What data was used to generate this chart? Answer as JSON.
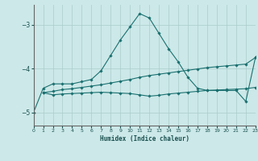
{
  "xlabel": "Humidex (Indice chaleur)",
  "background_color": "#cce8e8",
  "grid_color": "#aacccc",
  "line_color": "#1a7070",
  "xlim": [
    0,
    23
  ],
  "ylim": [
    -5.3,
    -2.55
  ],
  "yticks": [
    -5,
    -4,
    -3
  ],
  "xticks": [
    0,
    1,
    2,
    3,
    4,
    5,
    6,
    7,
    8,
    9,
    10,
    11,
    12,
    13,
    14,
    15,
    16,
    17,
    18,
    19,
    20,
    21,
    22,
    23
  ],
  "lines": [
    {
      "x": [
        0,
        1,
        2,
        3,
        4,
        5,
        6,
        7,
        8,
        9,
        10,
        11,
        12,
        13,
        14,
        15,
        16,
        17,
        18,
        19,
        20,
        21,
        22,
        23
      ],
      "y": [
        -5.0,
        -4.45,
        -4.35,
        -4.35,
        -4.35,
        -4.3,
        -4.25,
        -4.05,
        -3.7,
        -3.35,
        -3.05,
        -2.75,
        -2.85,
        -3.2,
        -3.55,
        -3.85,
        -4.2,
        -4.45,
        -4.5,
        -4.5,
        -4.5,
        -4.5,
        -4.75,
        -3.75
      ]
    },
    {
      "x": [
        1,
        2,
        3,
        4,
        5,
        6,
        7,
        8,
        9,
        10,
        11,
        12,
        13,
        14,
        15,
        16,
        17,
        18,
        19,
        20,
        21,
        22,
        23
      ],
      "y": [
        -4.55,
        -4.52,
        -4.48,
        -4.46,
        -4.43,
        -4.4,
        -4.37,
        -4.33,
        -4.29,
        -4.25,
        -4.2,
        -4.16,
        -4.13,
        -4.1,
        -4.07,
        -4.04,
        -4.01,
        -3.98,
        -3.96,
        -3.94,
        -3.92,
        -3.9,
        -3.75
      ]
    },
    {
      "x": [
        1,
        2,
        3,
        4,
        5,
        6,
        7,
        8,
        9,
        10,
        11,
        12,
        13,
        14,
        15,
        16,
        17,
        18,
        19,
        20,
        21,
        22,
        23
      ],
      "y": [
        -4.55,
        -4.6,
        -4.58,
        -4.57,
        -4.56,
        -4.55,
        -4.54,
        -4.55,
        -4.56,
        -4.57,
        -4.6,
        -4.63,
        -4.61,
        -4.58,
        -4.56,
        -4.54,
        -4.52,
        -4.5,
        -4.49,
        -4.48,
        -4.47,
        -4.46,
        -4.43
      ]
    }
  ]
}
